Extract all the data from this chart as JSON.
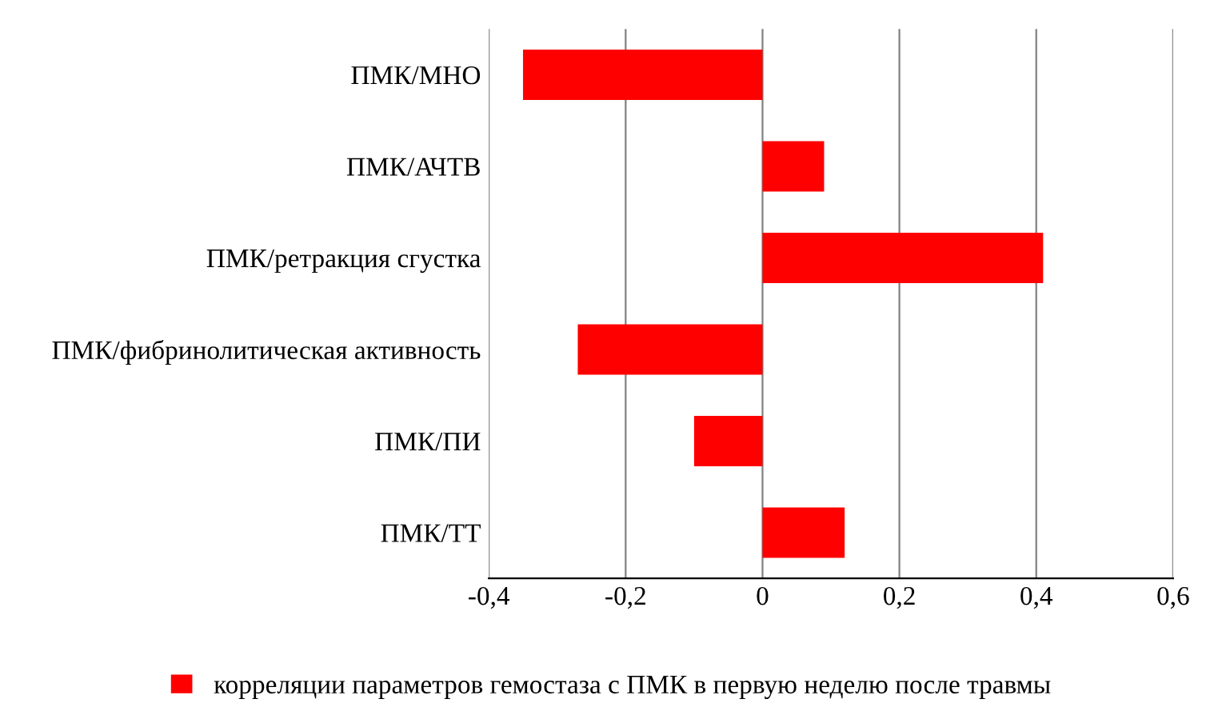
{
  "chart_data": {
    "type": "bar",
    "orientation": "horizontal",
    "categories": [
      "ПМК/МНО",
      "ПМК/АЧТВ",
      "ПМК/ретракция сгустка",
      "ПМК/фибринолитическая активность",
      "ПМК/ПИ",
      "ПМК/ТТ"
    ],
    "series": [
      {
        "name": "корреляции параметров гемостаза с ПМК в первую неделю после травмы",
        "color": "#ff0000",
        "values": [
          -0.35,
          0.09,
          0.41,
          -0.27,
          -0.1,
          0.12
        ]
      }
    ],
    "xlim": [
      -0.4,
      0.6
    ],
    "xticks": [
      {
        "value": -0.4,
        "label": "-0,4"
      },
      {
        "value": -0.2,
        "label": "-0,2"
      },
      {
        "value": 0,
        "label": "0"
      },
      {
        "value": 0.2,
        "label": "0,2"
      },
      {
        "value": 0.4,
        "label": "0,4"
      },
      {
        "value": 0.6,
        "label": "0,6"
      }
    ],
    "grid": "x",
    "legend": "bottom"
  }
}
